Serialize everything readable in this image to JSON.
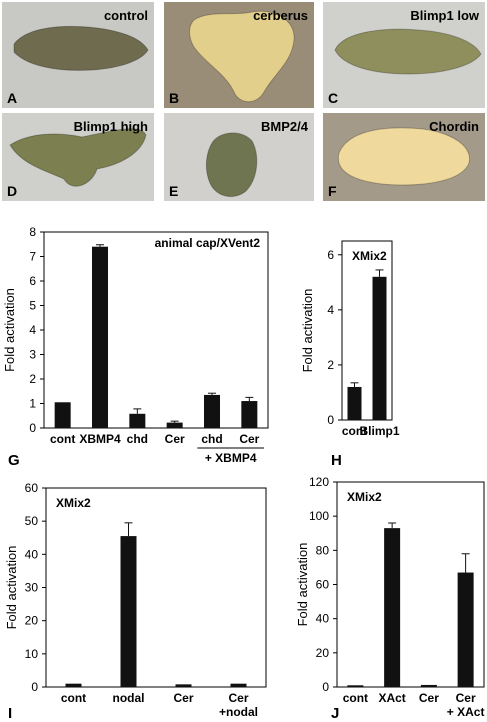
{
  "photos": [
    {
      "letter": "A",
      "label": "control",
      "bg": "#c8c8c4",
      "embryo": "#6f6b4f"
    },
    {
      "letter": "B",
      "label": "cerberus",
      "bg": "#9a8d78",
      "embryo": "#e3cf8c"
    },
    {
      "letter": "C",
      "label": "Blimp1 low",
      "bg": "#d0d0cc",
      "embryo": "#8f8f5e"
    },
    {
      "letter": "D",
      "label": "Blimp1 high",
      "bg": "#cfcfcc",
      "embryo": "#7c7f4f"
    },
    {
      "letter": "E",
      "label": "BMP2/4",
      "bg": "#d2d0cc",
      "embryo": "#6f7550"
    },
    {
      "letter": "F",
      "label": "Chordin",
      "bg": "#a49a8a",
      "embryo": "#efd99d"
    }
  ],
  "chart_data": [
    {
      "panel": "G",
      "type": "bar",
      "title": "animal cap/XVent2",
      "ylabel": "Fold activation",
      "ylim": [
        0,
        8
      ],
      "yticks": [
        0,
        1,
        2,
        3,
        4,
        5,
        6,
        7,
        8
      ],
      "categories": [
        "cont",
        "XBMP4",
        "chd",
        "Cer",
        "chd",
        "Cer"
      ],
      "values": [
        1.05,
        7.4,
        0.58,
        0.22,
        1.35,
        1.1
      ],
      "errors": [
        0,
        0.08,
        0.2,
        0.06,
        0.07,
        0.15
      ],
      "group_label": "+ XBMP4"
    },
    {
      "panel": "H",
      "type": "bar",
      "title": "XMix2",
      "ylabel": "Fold activation",
      "ylim": [
        0,
        6.5
      ],
      "yticks": [
        0,
        2,
        4,
        6
      ],
      "categories": [
        "cont",
        "Blimp1"
      ],
      "values": [
        1.2,
        5.2
      ],
      "errors": [
        0.15,
        0.25
      ]
    },
    {
      "panel": "I",
      "type": "bar",
      "title": "XMix2",
      "ylabel": "Fold activation",
      "ylim": [
        0,
        60
      ],
      "yticks": [
        0,
        10,
        20,
        30,
        40,
        50,
        60
      ],
      "categories": [
        "cont",
        "nodal",
        "Cer",
        "Cer"
      ],
      "category_sub": [
        "",
        "",
        "",
        "+nodal"
      ],
      "values": [
        1,
        45.5,
        0.8,
        1
      ],
      "errors": [
        0,
        4,
        0,
        0
      ]
    },
    {
      "panel": "J",
      "type": "bar",
      "title": "XMix2",
      "ylabel": "Fold activation",
      "ylim": [
        0,
        120
      ],
      "yticks": [
        0,
        20,
        40,
        60,
        80,
        100,
        120
      ],
      "categories": [
        "cont",
        "XAct",
        "Cer",
        "Cer"
      ],
      "category_sub": [
        "",
        "",
        "",
        "+ XAct"
      ],
      "values": [
        1,
        93,
        1.2,
        67
      ],
      "errors": [
        0,
        3,
        0,
        11
      ]
    }
  ]
}
